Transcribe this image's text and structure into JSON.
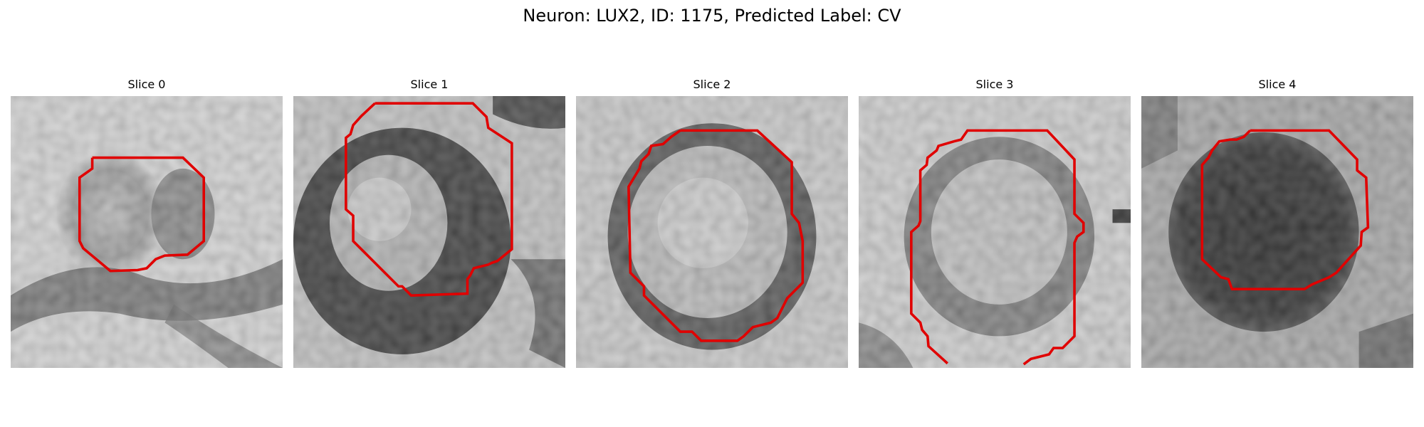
{
  "figure": {
    "title": "Neuron: LUX2, ID: 1175, Predicted Label: CV"
  },
  "panels": [
    {
      "title": "Slice 0",
      "contour_color": "#e00000",
      "appearance": "light textured background with a small grey blob and dark band below"
    },
    {
      "title": "Slice 1",
      "contour_color": "#e00000",
      "appearance": "light blob enclosed by a thick dark ring"
    },
    {
      "title": "Slice 2",
      "contour_color": "#e00000",
      "appearance": "light round body with a dark rim"
    },
    {
      "title": "Slice 3",
      "contour_color": "#e00000",
      "appearance": "light body with a grey ring, contour open at bottom"
    },
    {
      "title": "Slice 4",
      "contour_color": "#e00000",
      "appearance": "solid black disc on grey background"
    }
  ]
}
